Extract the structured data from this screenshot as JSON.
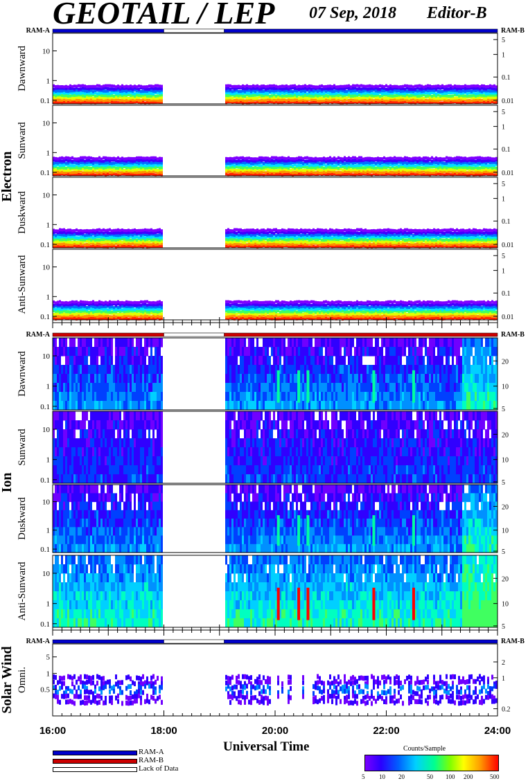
{
  "header": {
    "title": "GEOTAIL / LEP",
    "date": "07 Sep, 2018",
    "editor": "Editor-B"
  },
  "chart_data": {
    "type": "heatmap",
    "x_axis": {
      "label": "Universal Time",
      "range": [
        "16:00",
        "24:00"
      ],
      "ticks": [
        "16:00",
        "18:00",
        "20:00",
        "22:00",
        "24:00"
      ]
    },
    "data_gaps": [
      [
        "18:00",
        "19:05"
      ]
    ],
    "groups": [
      {
        "name": "Electron",
        "ram_left": "RAM-A",
        "ram_right": "RAM-B",
        "ram_color": "#0000cc",
        "panels": [
          {
            "label": "Dawnward",
            "left_ticks": [
              "10",
              "1",
              "0.1"
            ],
            "right_ticks": [
              "5",
              "1",
              "0.1",
              "0.01"
            ]
          },
          {
            "label": "Sunward",
            "left_ticks": [
              "10",
              "1",
              "0.1"
            ],
            "right_ticks": [
              "5",
              "1",
              "0.1",
              "0.01"
            ]
          },
          {
            "label": "Duskward",
            "left_ticks": [
              "10",
              "1",
              "0.1"
            ],
            "right_ticks": [
              "5",
              "1",
              "0.1",
              "0.01"
            ]
          },
          {
            "label": "Anti-Sunward",
            "left_ticks": [
              "10",
              "1",
              "0.1"
            ],
            "right_ticks": [
              "5",
              "1",
              "0.1",
              "0.01"
            ]
          }
        ]
      },
      {
        "name": "Ion",
        "ram_left": "RAM-A",
        "ram_right": "RAM-B",
        "ram_color": "#cc0000",
        "panels": [
          {
            "label": "Dawnward",
            "left_ticks": [
              "10",
              "1",
              "0.1"
            ],
            "right_ticks": [
              "20",
              "10",
              "5"
            ]
          },
          {
            "label": "Sunward",
            "left_ticks": [
              "10",
              "1",
              "0.1"
            ],
            "right_ticks": [
              "20",
              "10",
              "5"
            ]
          },
          {
            "label": "Duskward",
            "left_ticks": [
              "10",
              "1",
              "0.1"
            ],
            "right_ticks": [
              "20",
              "10",
              "5"
            ]
          },
          {
            "label": "Anti-Sunward",
            "left_ticks": [
              "10",
              "1",
              "0.1"
            ],
            "right_ticks": [
              "20",
              "10",
              "5"
            ]
          }
        ]
      },
      {
        "name": "Solar Wind",
        "ram_left": "RAM-A",
        "ram_right": "RAM-B",
        "ram_color": "#0000cc",
        "panels": [
          {
            "label": "Omni.",
            "left_ticks": [
              "5",
              "1",
              "0.5"
            ],
            "right_ticks": [
              "2",
              "1",
              "0.2"
            ]
          }
        ]
      }
    ],
    "legend": [
      {
        "label": "RAM-A",
        "color": "#0000cc"
      },
      {
        "label": "RAM-B",
        "color": "#cc0000"
      },
      {
        "label": "Lack of Data",
        "color": "#ffffff"
      }
    ],
    "colorbar": {
      "title": "Counts/Sample",
      "ticks": [
        "5",
        "10",
        "20",
        "50",
        "100",
        "200",
        "500"
      ]
    }
  }
}
